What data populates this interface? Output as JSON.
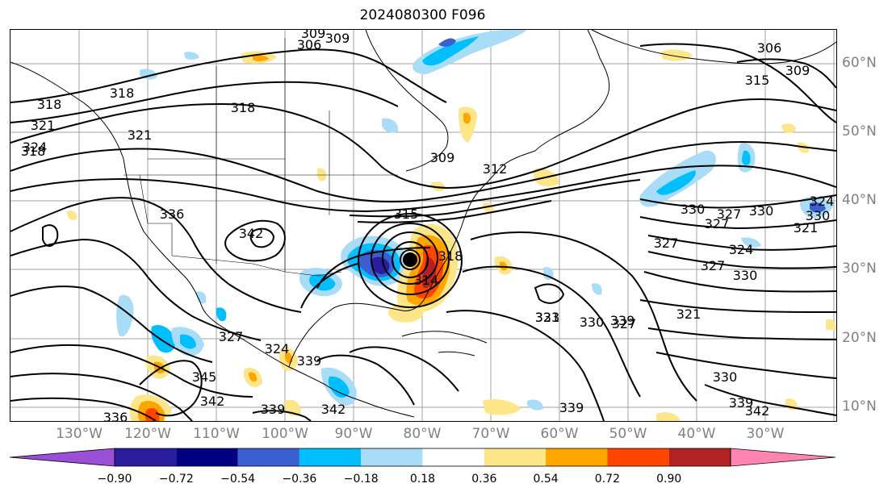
{
  "title": "2024080300 F096",
  "map": {
    "lon_labels": [
      "130°W",
      "120°W",
      "110°W",
      "100°W",
      "90°W",
      "80°W",
      "70°W",
      "60°W",
      "50°W",
      "40°W",
      "30°W"
    ],
    "lat_labels": [
      "60°N",
      "50°N",
      "40°N",
      "30°N",
      "20°N",
      "10°N"
    ],
    "contour_labels": [
      "306",
      "309",
      "309",
      "306",
      "309",
      "318",
      "318",
      "315",
      "318",
      "321",
      "324",
      "321",
      "318",
      "309",
      "312",
      "315",
      "336",
      "342",
      "327",
      "330",
      "330",
      "327",
      "330",
      "321",
      "324",
      "327",
      "324",
      "327",
      "330",
      "321",
      "314",
      "318",
      "330",
      "321",
      "339",
      "330",
      "327",
      "324",
      "339",
      "345",
      "342",
      "339",
      "342",
      "339",
      "333",
      "327",
      "339",
      "342",
      "336"
    ],
    "low_center_marker": "low-pressure-center"
  },
  "colorbar": {
    "ticks": [
      "−0.90",
      "−0.72",
      "−0.54",
      "−0.36",
      "−0.18",
      "0.18",
      "0.36",
      "0.54",
      "0.72",
      "0.90"
    ],
    "colors": [
      "#9a4fd6",
      "#2a1e9e",
      "#000080",
      "#3a5fd0",
      "#00bfff",
      "#a8dcf7",
      "#ffffff",
      "#fde58a",
      "#ffa500",
      "#ff4500",
      "#b22222",
      "#ff85b0"
    ]
  },
  "palette": {
    "contour": "#000000",
    "coast": "#000000",
    "grid": "#a0a0a0",
    "axis_label": "#808080"
  }
}
